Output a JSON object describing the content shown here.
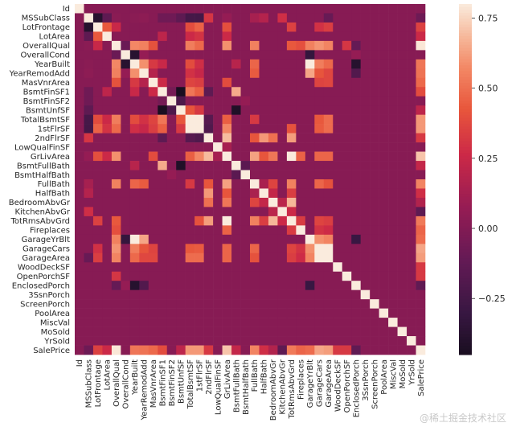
{
  "chart_data": {
    "type": "heatmap",
    "variables": [
      "Id",
      "MSSubClass",
      "LotFrontage",
      "LotArea",
      "OverallQual",
      "OverallCond",
      "YearBuilt",
      "YearRemodAdd",
      "MasVnrArea",
      "BsmtFinSF1",
      "BsmtFinSF2",
      "BsmtUnfSF",
      "TotalBsmtSF",
      "1stFlrSF",
      "2ndFlrSF",
      "LowQualFinSF",
      "GrLivArea",
      "BsmtFullBath",
      "BsmtHalfBath",
      "FullBath",
      "HalfBath",
      "BedroomAbvGr",
      "KitchenAbvGr",
      "TotRmsAbvGrd",
      "Fireplaces",
      "GarageYrBlt",
      "GarageCars",
      "GarageArea",
      "WoodDeckSF",
      "OpenPorchSF",
      "EnclosedPorch",
      "3SsnPorch",
      "ScreenPorch",
      "PoolArea",
      "MiscVal",
      "MoSold",
      "YrSold",
      "SalePrice"
    ],
    "pairs": [
      [
        "MSSubClass",
        "LotFrontage",
        -0.39
      ],
      [
        "MSSubClass",
        "LotArea",
        -0.14
      ],
      [
        "MSSubClass",
        "OverallQual",
        0.03
      ],
      [
        "MSSubClass",
        "YearBuilt",
        0.03
      ],
      [
        "MSSubClass",
        "YearRemodAdd",
        0.04
      ],
      [
        "MSSubClass",
        "BsmtFinSF1",
        -0.07
      ],
      [
        "MSSubClass",
        "BsmtFinSF2",
        -0.07
      ],
      [
        "MSSubClass",
        "BsmtUnfSF",
        -0.14
      ],
      [
        "MSSubClass",
        "TotalBsmtSF",
        -0.24
      ],
      [
        "MSSubClass",
        "1stFlrSF",
        -0.25
      ],
      [
        "MSSubClass",
        "2ndFlrSF",
        0.31
      ],
      [
        "MSSubClass",
        "GrLivArea",
        0.07
      ],
      [
        "MSSubClass",
        "FullBath",
        0.13
      ],
      [
        "MSSubClass",
        "HalfBath",
        0.18
      ],
      [
        "MSSubClass",
        "KitchenAbvGr",
        0.28
      ],
      [
        "MSSubClass",
        "GarageArea",
        -0.1
      ],
      [
        "MSSubClass",
        "SalePrice",
        -0.08
      ],
      [
        "LotFrontage",
        "LotArea",
        0.43
      ],
      [
        "LotFrontage",
        "OverallQual",
        0.25
      ],
      [
        "LotFrontage",
        "TotalBsmtSF",
        0.39
      ],
      [
        "LotFrontage",
        "1stFlrSF",
        0.46
      ],
      [
        "LotFrontage",
        "GrLivArea",
        0.4
      ],
      [
        "LotFrontage",
        "TotRmsAbvGrd",
        0.35
      ],
      [
        "LotFrontage",
        "GarageCars",
        0.29
      ],
      [
        "LotFrontage",
        "GarageArea",
        0.34
      ],
      [
        "LotFrontage",
        "SalePrice",
        0.35
      ],
      [
        "LotArea",
        "BsmtFinSF1",
        0.21
      ],
      [
        "LotArea",
        "TotalBsmtSF",
        0.26
      ],
      [
        "LotArea",
        "1stFlrSF",
        0.3
      ],
      [
        "LotArea",
        "GrLivArea",
        0.26
      ],
      [
        "LotArea",
        "SalePrice",
        0.26
      ],
      [
        "OverallQual",
        "OverallCond",
        -0.09
      ],
      [
        "OverallQual",
        "YearBuilt",
        0.57
      ],
      [
        "OverallQual",
        "YearRemodAdd",
        0.55
      ],
      [
        "OverallQual",
        "MasVnrArea",
        0.41
      ],
      [
        "OverallQual",
        "TotalBsmtSF",
        0.54
      ],
      [
        "OverallQual",
        "1stFlrSF",
        0.48
      ],
      [
        "OverallQual",
        "GrLivArea",
        0.59
      ],
      [
        "OverallQual",
        "FullBath",
        0.55
      ],
      [
        "OverallQual",
        "TotRmsAbvGrd",
        0.43
      ],
      [
        "OverallQual",
        "Fireplaces",
        0.4
      ],
      [
        "OverallQual",
        "GarageYrBlt",
        0.55
      ],
      [
        "OverallQual",
        "GarageCars",
        0.6
      ],
      [
        "OverallQual",
        "GarageArea",
        0.56
      ],
      [
        "OverallQual",
        "OpenPorchSF",
        0.31
      ],
      [
        "OverallQual",
        "EnclosedPorch",
        -0.11
      ],
      [
        "OverallQual",
        "SalePrice",
        0.79
      ],
      [
        "OverallCond",
        "YearBuilt",
        -0.38
      ],
      [
        "OverallCond",
        "YearRemodAdd",
        0.07
      ],
      [
        "OverallCond",
        "GarageYrBlt",
        -0.32
      ],
      [
        "OverallCond",
        "EnclosedPorch",
        0.07
      ],
      [
        "YearBuilt",
        "YearRemodAdd",
        0.59
      ],
      [
        "YearBuilt",
        "MasVnrArea",
        0.32
      ],
      [
        "YearBuilt",
        "BsmtFinSF1",
        0.25
      ],
      [
        "YearBuilt",
        "TotalBsmtSF",
        0.39
      ],
      [
        "YearBuilt",
        "1stFlrSF",
        0.28
      ],
      [
        "YearBuilt",
        "FullBath",
        0.47
      ],
      [
        "YearBuilt",
        "BsmtFullBath",
        0.19
      ],
      [
        "YearBuilt",
        "GarageYrBlt",
        0.83
      ],
      [
        "YearBuilt",
        "GarageCars",
        0.54
      ],
      [
        "YearBuilt",
        "GarageArea",
        0.48
      ],
      [
        "YearBuilt",
        "EnclosedPorch",
        -0.39
      ],
      [
        "YearBuilt",
        "SalePrice",
        0.52
      ],
      [
        "YearRemodAdd",
        "MasVnrArea",
        0.18
      ],
      [
        "YearRemodAdd",
        "TotalBsmtSF",
        0.29
      ],
      [
        "YearRemodAdd",
        "1stFlrSF",
        0.24
      ],
      [
        "YearRemodAdd",
        "FullBath",
        0.44
      ],
      [
        "YearRemodAdd",
        "GarageYrBlt",
        0.64
      ],
      [
        "YearRemodAdd",
        "GarageCars",
        0.42
      ],
      [
        "YearRemodAdd",
        "GarageArea",
        0.37
      ],
      [
        "YearRemodAdd",
        "EnclosedPorch",
        -0.19
      ],
      [
        "YearRemodAdd",
        "SalePrice",
        0.51
      ],
      [
        "MasVnrArea",
        "BsmtFinSF1",
        0.26
      ],
      [
        "MasVnrArea",
        "TotalBsmtSF",
        0.36
      ],
      [
        "MasVnrArea",
        "1stFlrSF",
        0.34
      ],
      [
        "MasVnrArea",
        "GrLivArea",
        0.39
      ],
      [
        "MasVnrArea",
        "GarageCars",
        0.36
      ],
      [
        "MasVnrArea",
        "GarageArea",
        0.37
      ],
      [
        "MasVnrArea",
        "SalePrice",
        0.48
      ],
      [
        "BsmtFinSF1",
        "BsmtFinSF2",
        -0.05
      ],
      [
        "BsmtFinSF1",
        "BsmtUnfSF",
        -0.5
      ],
      [
        "BsmtFinSF1",
        "TotalBsmtSF",
        0.52
      ],
      [
        "BsmtFinSF1",
        "1stFlrSF",
        0.45
      ],
      [
        "BsmtFinSF1",
        "2ndFlrSF",
        -0.14
      ],
      [
        "BsmtFinSF1",
        "BsmtFullBath",
        0.65
      ],
      [
        "BsmtFinSF1",
        "SalePrice",
        0.39
      ],
      [
        "BsmtFinSF2",
        "BsmtUnfSF",
        -0.21
      ],
      [
        "BsmtFinSF2",
        "BsmtHalfBath",
        0.07
      ],
      [
        "BsmtUnfSF",
        "TotalBsmtSF",
        0.42
      ],
      [
        "BsmtUnfSF",
        "1stFlrSF",
        0.32
      ],
      [
        "BsmtUnfSF",
        "BsmtFullBath",
        -0.42
      ],
      [
        "BsmtUnfSF",
        "SalePrice",
        0.21
      ],
      [
        "TotalBsmtSF",
        "1stFlrSF",
        0.82
      ],
      [
        "TotalBsmtSF",
        "2ndFlrSF",
        -0.17
      ],
      [
        "TotalBsmtSF",
        "GrLivArea",
        0.45
      ],
      [
        "TotalBsmtSF",
        "FullBath",
        0.32
      ],
      [
        "TotalBsmtSF",
        "GarageCars",
        0.43
      ],
      [
        "TotalBsmtSF",
        "GarageArea",
        0.49
      ],
      [
        "TotalBsmtSF",
        "SalePrice",
        0.61
      ],
      [
        "1stFlrSF",
        "2ndFlrSF",
        -0.2
      ],
      [
        "1stFlrSF",
        "GrLivArea",
        0.57
      ],
      [
        "1stFlrSF",
        "TotRmsAbvGrd",
        0.41
      ],
      [
        "1stFlrSF",
        "GarageCars",
        0.44
      ],
      [
        "1stFlrSF",
        "GarageArea",
        0.49
      ],
      [
        "1stFlrSF",
        "SalePrice",
        0.61
      ],
      [
        "2ndFlrSF",
        "GrLivArea",
        0.69
      ],
      [
        "2ndFlrSF",
        "HalfBath",
        0.61
      ],
      [
        "2ndFlrSF",
        "BedroomAbvGr",
        0.5
      ],
      [
        "2ndFlrSF",
        "TotRmsAbvGrd",
        0.62
      ],
      [
        "2ndFlrSF",
        "FullBath",
        0.42
      ],
      [
        "2ndFlrSF",
        "SalePrice",
        0.32
      ],
      [
        "LowQualFinSF",
        "GrLivArea",
        0.13
      ],
      [
        "GrLivArea",
        "FullBath",
        0.63
      ],
      [
        "GrLivArea",
        "HalfBath",
        0.42
      ],
      [
        "GrLivArea",
        "BedroomAbvGr",
        0.52
      ],
      [
        "GrLivArea",
        "TotRmsAbvGrd",
        0.83
      ],
      [
        "GrLivArea",
        "Fireplaces",
        0.46
      ],
      [
        "GrLivArea",
        "GarageCars",
        0.47
      ],
      [
        "GrLivArea",
        "GarageArea",
        0.47
      ],
      [
        "GrLivArea",
        "SalePrice",
        0.71
      ],
      [
        "BsmtFullBath",
        "BsmtHalfBath",
        -0.15
      ],
      [
        "BsmtFullBath",
        "SalePrice",
        0.23
      ],
      [
        "FullBath",
        "HalfBath",
        0.14
      ],
      [
        "FullBath",
        "BedroomAbvGr",
        0.36
      ],
      [
        "FullBath",
        "TotRmsAbvGrd",
        0.55
      ],
      [
        "FullBath",
        "GarageCars",
        0.47
      ],
      [
        "FullBath",
        "GarageArea",
        0.41
      ],
      [
        "FullBath",
        "SalePrice",
        0.56
      ],
      [
        "HalfBath",
        "BedroomAbvGr",
        0.23
      ],
      [
        "HalfBath",
        "TotRmsAbvGrd",
        0.34
      ],
      [
        "HalfBath",
        "SalePrice",
        0.28
      ],
      [
        "BedroomAbvGr",
        "KitchenAbvGr",
        0.2
      ],
      [
        "BedroomAbvGr",
        "TotRmsAbvGrd",
        0.68
      ],
      [
        "BedroomAbvGr",
        "SalePrice",
        0.17
      ],
      [
        "KitchenAbvGr",
        "TotRmsAbvGrd",
        0.26
      ],
      [
        "KitchenAbvGr",
        "SalePrice",
        -0.14
      ],
      [
        "TotRmsAbvGrd",
        "Fireplaces",
        0.33
      ],
      [
        "TotRmsAbvGrd",
        "GarageCars",
        0.36
      ],
      [
        "TotRmsAbvGrd",
        "GarageArea",
        0.34
      ],
      [
        "TotRmsAbvGrd",
        "SalePrice",
        0.53
      ],
      [
        "Fireplaces",
        "GarageCars",
        0.3
      ],
      [
        "Fireplaces",
        "GarageArea",
        0.27
      ],
      [
        "Fireplaces",
        "SalePrice",
        0.47
      ],
      [
        "GarageYrBlt",
        "GarageCars",
        0.59
      ],
      [
        "GarageYrBlt",
        "GarageArea",
        0.56
      ],
      [
        "GarageYrBlt",
        "EnclosedPorch",
        -0.3
      ],
      [
        "GarageYrBlt",
        "SalePrice",
        0.49
      ],
      [
        "GarageCars",
        "GarageArea",
        0.88
      ],
      [
        "GarageCars",
        "SalePrice",
        0.64
      ],
      [
        "GarageArea",
        "SalePrice",
        0.62
      ],
      [
        "WoodDeckSF",
        "SalePrice",
        0.32
      ],
      [
        "OpenPorchSF",
        "SalePrice",
        0.32
      ],
      [
        "EnclosedPorch",
        "SalePrice",
        -0.13
      ]
    ],
    "vmin": -0.45,
    "vmax": 0.8,
    "colorbar_ticks": [
      "0.75",
      "0.50",
      "0.25",
      "0.00",
      "−0.25"
    ],
    "colorbar_tick_values": [
      0.75,
      0.5,
      0.25,
      0.0,
      -0.25
    ]
  },
  "watermark": "@稀土掘金技术社区"
}
